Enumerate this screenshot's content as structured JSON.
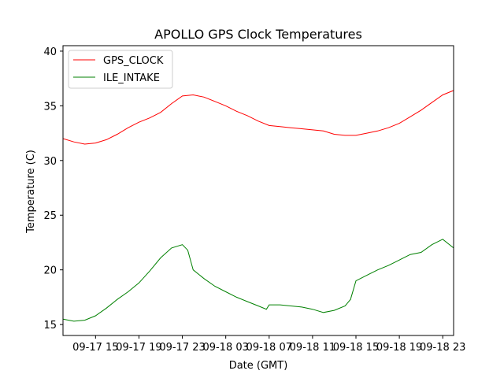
{
  "chart_data": {
    "type": "line",
    "title": "APOLLO GPS Clock Temperatures",
    "xlabel": "Date (GMT)",
    "ylabel": "Temperature (C)",
    "ylim": [
      14,
      40.5
    ],
    "yticks": [
      15,
      20,
      25,
      30,
      35,
      40
    ],
    "xlim": [
      "09-17 12:00",
      "09-19 00:00"
    ],
    "xticks": [
      {
        "label": "09-17 15",
        "x": "09-17 15:00"
      },
      {
        "label": "09-17 19",
        "x": "09-17 19:00"
      },
      {
        "label": "09-17 23",
        "x": "09-17 23:00"
      },
      {
        "label": "09-18 03",
        "x": "09-18 03:00"
      },
      {
        "label": "09-18 07",
        "x": "09-18 07:00"
      },
      {
        "label": "09-18 11",
        "x": "09-18 11:00"
      },
      {
        "label": "09-18 15",
        "x": "09-18 15:00"
      },
      {
        "label": "09-18 19",
        "x": "09-18 19:00"
      },
      {
        "label": "09-18 23",
        "x": "09-18 23:00"
      }
    ],
    "legend_position": "top-left",
    "grid": false,
    "series": [
      {
        "name": "GPS_CLOCK",
        "color": "#ff0000",
        "x": [
          "09-17 12:00",
          "09-17 13:00",
          "09-17 14:00",
          "09-17 15:00",
          "09-17 16:00",
          "09-17 17:00",
          "09-17 18:00",
          "09-17 19:00",
          "09-17 20:00",
          "09-17 21:00",
          "09-17 22:00",
          "09-17 23:00",
          "09-18 00:00",
          "09-18 01:00",
          "09-18 02:00",
          "09-18 03:00",
          "09-18 04:00",
          "09-18 05:00",
          "09-18 06:00",
          "09-18 07:00",
          "09-18 08:00",
          "09-18 09:00",
          "09-18 10:00",
          "09-18 11:00",
          "09-18 12:00",
          "09-18 13:00",
          "09-18 14:00",
          "09-18 15:00",
          "09-18 16:00",
          "09-18 17:00",
          "09-18 18:00",
          "09-18 19:00",
          "09-18 20:00",
          "09-18 21:00",
          "09-18 22:00",
          "09-18 23:00",
          "09-19 00:00"
        ],
        "values": [
          32.0,
          31.7,
          31.5,
          31.6,
          31.9,
          32.4,
          33.0,
          33.5,
          33.9,
          34.4,
          35.2,
          35.9,
          36.0,
          35.8,
          35.4,
          35.0,
          34.5,
          34.1,
          33.6,
          33.2,
          33.1,
          33.0,
          32.9,
          32.8,
          32.7,
          32.4,
          32.3,
          32.3,
          32.5,
          32.7,
          33.0,
          33.4,
          34.0,
          34.6,
          35.3,
          36.0,
          36.4
        ]
      },
      {
        "name": "ILE_INTAKE",
        "color": "#008000",
        "x": [
          "09-17 12:00",
          "09-17 13:00",
          "09-17 14:00",
          "09-17 15:00",
          "09-17 16:00",
          "09-17 17:00",
          "09-17 18:00",
          "09-17 19:00",
          "09-17 20:00",
          "09-17 21:00",
          "09-17 22:00",
          "09-17 23:00",
          "09-17 23:30",
          "09-18 00:00",
          "09-18 01:00",
          "09-18 02:00",
          "09-18 03:00",
          "09-18 04:00",
          "09-18 05:00",
          "09-18 06:00",
          "09-18 06:45",
          "09-18 07:00",
          "09-18 08:00",
          "09-18 09:00",
          "09-18 10:00",
          "09-18 11:00",
          "09-18 12:00",
          "09-18 13:00",
          "09-18 14:00",
          "09-18 14:30",
          "09-18 15:00",
          "09-18 16:00",
          "09-18 17:00",
          "09-18 18:00",
          "09-18 19:00",
          "09-18 20:00",
          "09-18 21:00",
          "09-18 22:00",
          "09-18 23:00",
          "09-19 00:00"
        ],
        "values": [
          15.5,
          15.3,
          15.4,
          15.8,
          16.5,
          17.3,
          18.0,
          18.8,
          19.9,
          21.1,
          22.0,
          22.3,
          21.8,
          20.0,
          19.2,
          18.5,
          18.0,
          17.5,
          17.1,
          16.7,
          16.4,
          16.8,
          16.8,
          16.7,
          16.6,
          16.4,
          16.1,
          16.3,
          16.7,
          17.3,
          19.0,
          19.5,
          20.0,
          20.4,
          20.9,
          21.4,
          21.6,
          22.3,
          22.8,
          22.0
        ]
      }
    ]
  }
}
